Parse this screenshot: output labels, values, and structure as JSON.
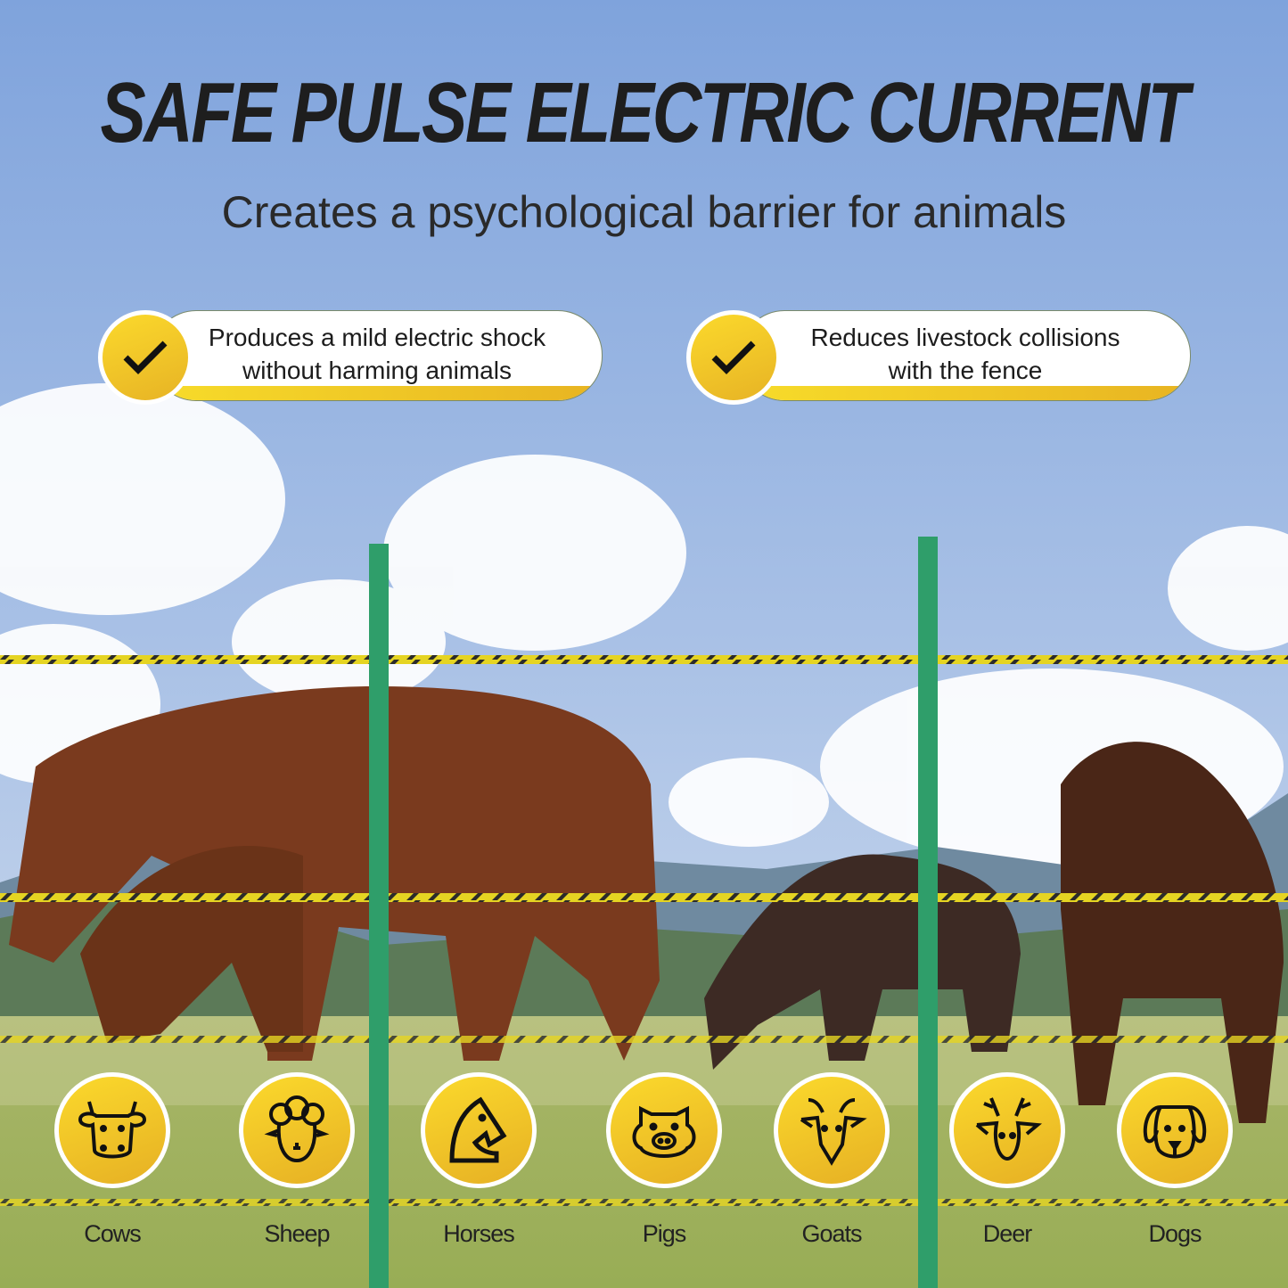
{
  "header": {
    "title": "SAFE PULSE ELECTRIC CURRENT",
    "subtitle": "Creates a psychological barrier for animals"
  },
  "features": [
    {
      "line1": "Produces a mild electric shock",
      "line2": "without harming animals",
      "icon": "check-icon"
    },
    {
      "line1": "Reduces livestock collisions",
      "line2": "with the fence",
      "icon": "check-icon"
    }
  ],
  "animals": [
    {
      "label": "Cows",
      "icon": "cow-icon"
    },
    {
      "label": "Sheep",
      "icon": "sheep-icon"
    },
    {
      "label": "Horses",
      "icon": "horse-icon"
    },
    {
      "label": "Pigs",
      "icon": "pig-icon"
    },
    {
      "label": "Goats",
      "icon": "goat-icon"
    },
    {
      "label": "Deer",
      "icon": "deer-icon"
    },
    {
      "label": "Dogs",
      "icon": "dog-icon"
    }
  ],
  "colors": {
    "accent_yellow": "#f5cf2a",
    "post_green": "#2f9e6a",
    "sky": "#8fb0de"
  }
}
